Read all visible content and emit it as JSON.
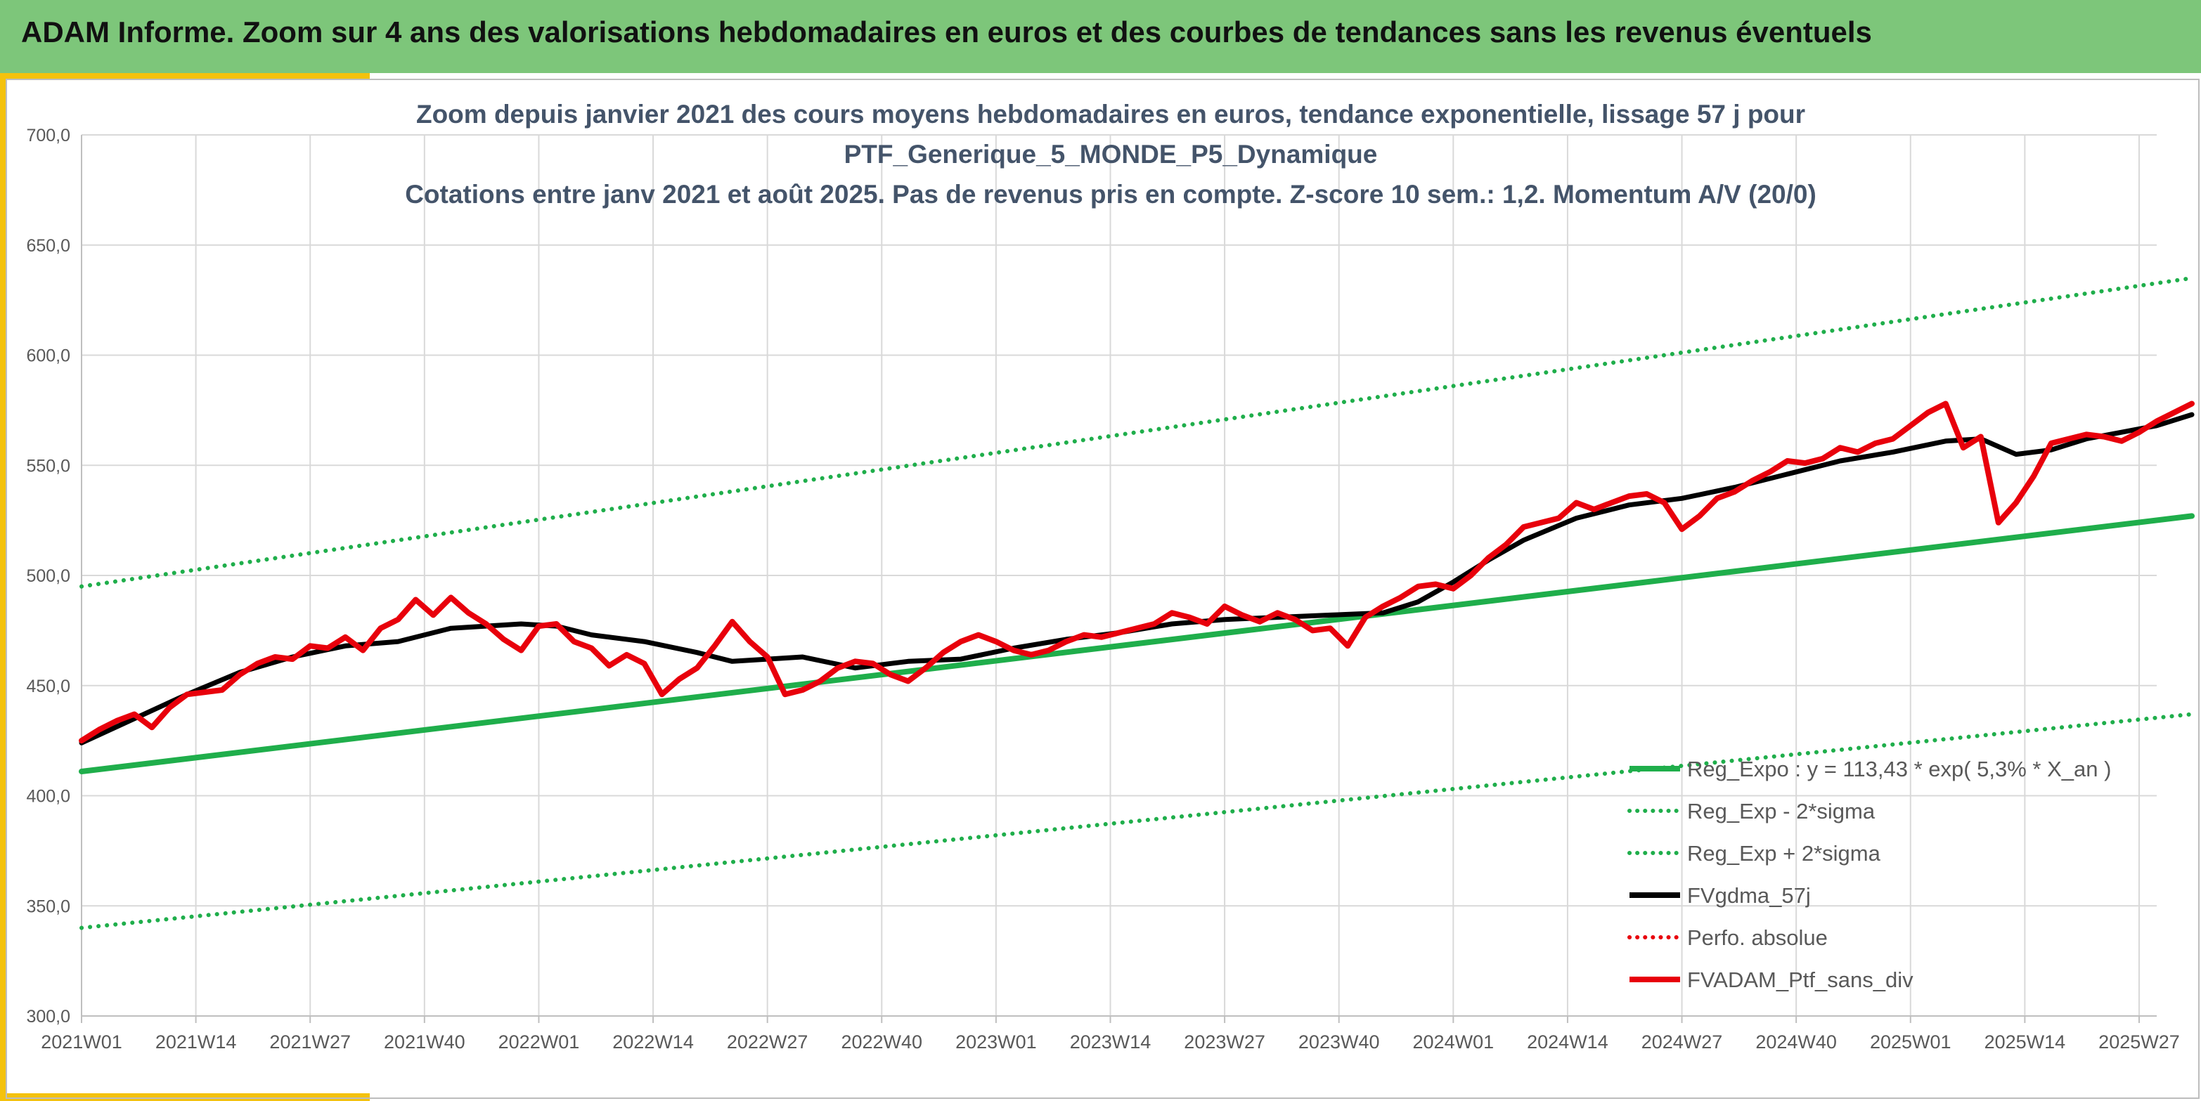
{
  "banner": {
    "title": "ADAM Informe. Zoom sur 4 ans des valorisations hebdomadaires en euros et des courbes de tendances sans les revenus éventuels",
    "background": "#7dc67a",
    "accent": "#f4c20d"
  },
  "chart_data": {
    "type": "line",
    "title_lines": [
      "Zoom depuis janvier 2021 des cours moyens hebdomadaires en euros, tendance exponentielle, lissage 57 j pour",
      "PTF_Generique_5_MONDE_P5_Dynamique",
      "Cotations entre janv 2021 et août 2025. Pas de revenus pris en compte. Z-score 10 sem.: 1,2. Momentum A/V (20/0)"
    ],
    "xlabel": "",
    "ylabel": "",
    "ylim": [
      300,
      700
    ],
    "y_ticks": [
      "300,0",
      "350,0",
      "400,0",
      "450,0",
      "500,0",
      "550,0",
      "600,0",
      "650,0",
      "700,0"
    ],
    "x_range": [
      0,
      236
    ],
    "x_ticks": [
      {
        "label": "2021W01",
        "week": 0
      },
      {
        "label": "2021W14",
        "week": 13
      },
      {
        "label": "2021W27",
        "week": 26
      },
      {
        "label": "2021W40",
        "week": 39
      },
      {
        "label": "2022W01",
        "week": 52
      },
      {
        "label": "2022W14",
        "week": 65
      },
      {
        "label": "2022W27",
        "week": 78
      },
      {
        "label": "2022W40",
        "week": 91
      },
      {
        "label": "2023W01",
        "week": 104
      },
      {
        "label": "2023W14",
        "week": 117
      },
      {
        "label": "2023W27",
        "week": 130
      },
      {
        "label": "2023W40",
        "week": 143
      },
      {
        "label": "2024W01",
        "week": 156
      },
      {
        "label": "2024W14",
        "week": 169
      },
      {
        "label": "2024W27",
        "week": 182
      },
      {
        "label": "2024W40",
        "week": 195
      },
      {
        "label": "2025W01",
        "week": 208
      },
      {
        "label": "2025W14",
        "week": 221
      },
      {
        "label": "2025W27",
        "week": 234
      }
    ],
    "grid": true,
    "legend_position": "bottom-right",
    "series": [
      {
        "name": "Reg_Expo : y = 113,43 * exp( 5,3% *  X_an )",
        "color": "#1fae4b",
        "style": "solid",
        "width": 8,
        "x": [
          0,
          240
        ],
        "values": [
          411,
          527
        ]
      },
      {
        "name": "Reg_Exp - 2*sigma",
        "color": "#1fae4b",
        "style": "dotted",
        "width": 6,
        "x": [
          0,
          240
        ],
        "values": [
          340,
          437
        ]
      },
      {
        "name": "Reg_Exp + 2*sigma",
        "color": "#1fae4b",
        "style": "dotted",
        "width": 6,
        "x": [
          0,
          240
        ],
        "values": [
          495,
          635
        ]
      },
      {
        "name": "FVgdma_57j",
        "color": "#000000",
        "style": "solid",
        "width": 7,
        "x": [
          0,
          6,
          12,
          18,
          24,
          30,
          36,
          42,
          46,
          50,
          54,
          58,
          64,
          70,
          74,
          78,
          82,
          88,
          94,
          100,
          106,
          112,
          118,
          124,
          130,
          136,
          142,
          148,
          152,
          156,
          160,
          164,
          170,
          176,
          182,
          188,
          194,
          200,
          206,
          212,
          216,
          220,
          224,
          228,
          232,
          236,
          240
        ],
        "values": [
          424,
          435,
          446,
          456,
          463,
          468,
          470,
          476,
          477,
          478,
          477,
          473,
          470,
          465,
          461,
          462,
          463,
          458,
          461,
          462,
          467,
          471,
          474,
          478,
          480,
          481,
          482,
          483,
          488,
          497,
          507,
          516,
          526,
          532,
          535,
          540,
          546,
          552,
          556,
          561,
          562,
          555,
          557,
          562,
          565,
          568,
          573
        ]
      },
      {
        "name": "Perfo. absolue",
        "color": "#e8000b",
        "style": "dotted",
        "width": 6,
        "x": [],
        "values": []
      },
      {
        "name": "FVADAM_Ptf_sans_div",
        "color": "#e8000b",
        "style": "solid",
        "width": 8,
        "x": [
          0,
          2,
          4,
          6,
          8,
          10,
          12,
          14,
          16,
          18,
          20,
          22,
          24,
          26,
          28,
          30,
          32,
          34,
          36,
          38,
          40,
          42,
          44,
          46,
          48,
          50,
          52,
          54,
          56,
          58,
          60,
          62,
          64,
          66,
          68,
          70,
          72,
          74,
          76,
          78,
          80,
          82,
          84,
          86,
          88,
          90,
          92,
          94,
          96,
          98,
          100,
          102,
          104,
          106,
          108,
          110,
          112,
          114,
          116,
          118,
          120,
          122,
          124,
          126,
          128,
          130,
          132,
          134,
          136,
          138,
          140,
          142,
          144,
          146,
          148,
          150,
          152,
          154,
          156,
          158,
          160,
          162,
          164,
          166,
          168,
          170,
          172,
          174,
          176,
          178,
          180,
          182,
          184,
          186,
          188,
          190,
          192,
          194,
          196,
          198,
          200,
          202,
          204,
          206,
          208,
          210,
          212,
          214,
          216,
          218,
          220,
          222,
          224,
          226,
          228,
          230,
          232,
          234,
          236,
          238,
          240
        ],
        "values": [
          425,
          430,
          434,
          437,
          431,
          440,
          446,
          447,
          448,
          455,
          460,
          463,
          462,
          468,
          467,
          472,
          466,
          476,
          480,
          489,
          482,
          490,
          483,
          478,
          471,
          466,
          477,
          478,
          470,
          467,
          459,
          464,
          460,
          446,
          453,
          458,
          468,
          479,
          470,
          463,
          446,
          448,
          452,
          458,
          461,
          460,
          455,
          452,
          458,
          465,
          470,
          473,
          470,
          466,
          464,
          466,
          470,
          473,
          472,
          474,
          476,
          478,
          483,
          481,
          478,
          486,
          482,
          479,
          483,
          480,
          475,
          476,
          468,
          481,
          486,
          490,
          495,
          496,
          494,
          500,
          508,
          514,
          522,
          524,
          526,
          533,
          530,
          533,
          536,
          537,
          533,
          521,
          527,
          535,
          538,
          543,
          547,
          552,
          551,
          553,
          558,
          556,
          560,
          562,
          568,
          574,
          578,
          558,
          563,
          524,
          533,
          545,
          560,
          562,
          564,
          563,
          561,
          565,
          570,
          574,
          578
        ]
      }
    ]
  }
}
